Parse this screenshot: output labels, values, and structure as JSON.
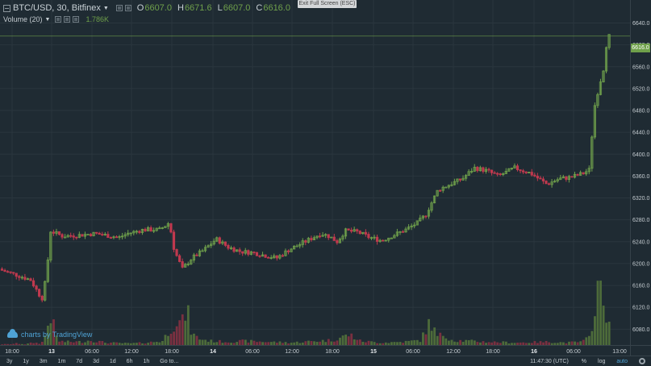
{
  "legend": {
    "symbol": "BTC/USD, 30, Bitfinex",
    "open_key": "O",
    "open": "6607.0",
    "high_key": "H",
    "high": "6671.6",
    "low_key": "L",
    "low": "6607.0",
    "close_key": "C",
    "close": "6616.0",
    "volume_label": "Volume (20)",
    "volume_value": "1.786K"
  },
  "exit_fullscreen": "Exit Full Screen (ESC)",
  "last_price_tag": "6616.0",
  "watermark": "charts by TradingView",
  "toolbar": {
    "ranges": [
      "3y",
      "1y",
      "3m",
      "1m",
      "7d",
      "3d",
      "1d",
      "6h",
      "1h"
    ],
    "goto": "Go to...",
    "time": "11:47:30 (UTC)",
    "percent": "%",
    "log": "log",
    "auto": "auto"
  },
  "colors": {
    "background": "#1f2b33",
    "grid": "#2a363e",
    "up": "#6fa04b",
    "down": "#c0394e",
    "up_volume": "#4d6b3a",
    "down_volume": "#7a3040",
    "accent": "#4fa3d6"
  },
  "chart_data": {
    "type": "candlestick",
    "symbol": "BTC/USD",
    "interval": "30",
    "exchange": "Bitfinex",
    "y_axis_ticks": [
      6640,
      6600,
      6560,
      6520,
      6480,
      6440,
      6400,
      6360,
      6320,
      6280,
      6240,
      6200,
      6160,
      6120,
      6080
    ],
    "y_range": [
      6051,
      6682
    ],
    "x_axis_ticks": [
      "18:00",
      "13",
      "06:00",
      "12:00",
      "18:00",
      "14",
      "06:00",
      "12:00",
      "18:00",
      "15",
      "06:00",
      "12:00",
      "18:00",
      "16",
      "06:00",
      "13:00"
    ],
    "last_price": 6616.0,
    "price_anchors": [
      [
        0,
        6190
      ],
      [
        10,
        6185
      ],
      [
        25,
        6178
      ],
      [
        40,
        6170
      ],
      [
        54,
        6135
      ],
      [
        60,
        6180
      ],
      [
        64,
        6260
      ],
      [
        80,
        6250
      ],
      [
        100,
        6252
      ],
      [
        120,
        6255
      ],
      [
        140,
        6250
      ],
      [
        150,
        6248
      ],
      [
        160,
        6255
      ],
      [
        180,
        6262
      ],
      [
        200,
        6262
      ],
      [
        212,
        6275
      ],
      [
        218,
        6225
      ],
      [
        228,
        6190
      ],
      [
        240,
        6210
      ],
      [
        255,
        6225
      ],
      [
        270,
        6245
      ],
      [
        285,
        6230
      ],
      [
        300,
        6222
      ],
      [
        315,
        6220
      ],
      [
        330,
        6215
      ],
      [
        345,
        6210
      ],
      [
        360,
        6225
      ],
      [
        380,
        6240
      ],
      [
        400,
        6255
      ],
      [
        410,
        6250
      ],
      [
        420,
        6240
      ],
      [
        430,
        6260
      ],
      [
        445,
        6258
      ],
      [
        460,
        6248
      ],
      [
        475,
        6242
      ],
      [
        490,
        6252
      ],
      [
        505,
        6262
      ],
      [
        520,
        6275
      ],
      [
        530,
        6290
      ],
      [
        545,
        6335
      ],
      [
        560,
        6345
      ],
      [
        575,
        6355
      ],
      [
        590,
        6375
      ],
      [
        605,
        6370
      ],
      [
        620,
        6360
      ],
      [
        640,
        6375
      ],
      [
        660,
        6365
      ],
      [
        680,
        6345
      ],
      [
        695,
        6355
      ],
      [
        710,
        6358
      ],
      [
        725,
        6365
      ],
      [
        733,
        6372
      ],
      [
        738,
        6480
      ],
      [
        744,
        6520
      ],
      [
        750,
        6555
      ],
      [
        755,
        6616
      ]
    ],
    "volume_anchors": [
      [
        0,
        1
      ],
      [
        10,
        1
      ],
      [
        20,
        2
      ],
      [
        30,
        1
      ],
      [
        40,
        3
      ],
      [
        50,
        2
      ],
      [
        57,
        18
      ],
      [
        60,
        45
      ],
      [
        63,
        30
      ],
      [
        70,
        5
      ],
      [
        80,
        4
      ],
      [
        100,
        4
      ],
      [
        110,
        6
      ],
      [
        130,
        3
      ],
      [
        160,
        2
      ],
      [
        180,
        3
      ],
      [
        200,
        5
      ],
      [
        212,
        25
      ],
      [
        218,
        30
      ],
      [
        224,
        26
      ],
      [
        230,
        45
      ],
      [
        236,
        14
      ],
      [
        245,
        8
      ],
      [
        260,
        5
      ],
      [
        280,
        4
      ],
      [
        300,
        5
      ],
      [
        330,
        4
      ],
      [
        360,
        3
      ],
      [
        390,
        5
      ],
      [
        410,
        6
      ],
      [
        432,
        13
      ],
      [
        445,
        5
      ],
      [
        470,
        3
      ],
      [
        500,
        4
      ],
      [
        520,
        6
      ],
      [
        532,
        30
      ],
      [
        540,
        10
      ],
      [
        548,
        13
      ],
      [
        560,
        6
      ],
      [
        600,
        4
      ],
      [
        640,
        3
      ],
      [
        680,
        4
      ],
      [
        700,
        3
      ],
      [
        720,
        4
      ],
      [
        730,
        10
      ],
      [
        735,
        50
      ],
      [
        740,
        75
      ],
      [
        745,
        50
      ],
      [
        750,
        45
      ],
      [
        755,
        35
      ]
    ]
  }
}
